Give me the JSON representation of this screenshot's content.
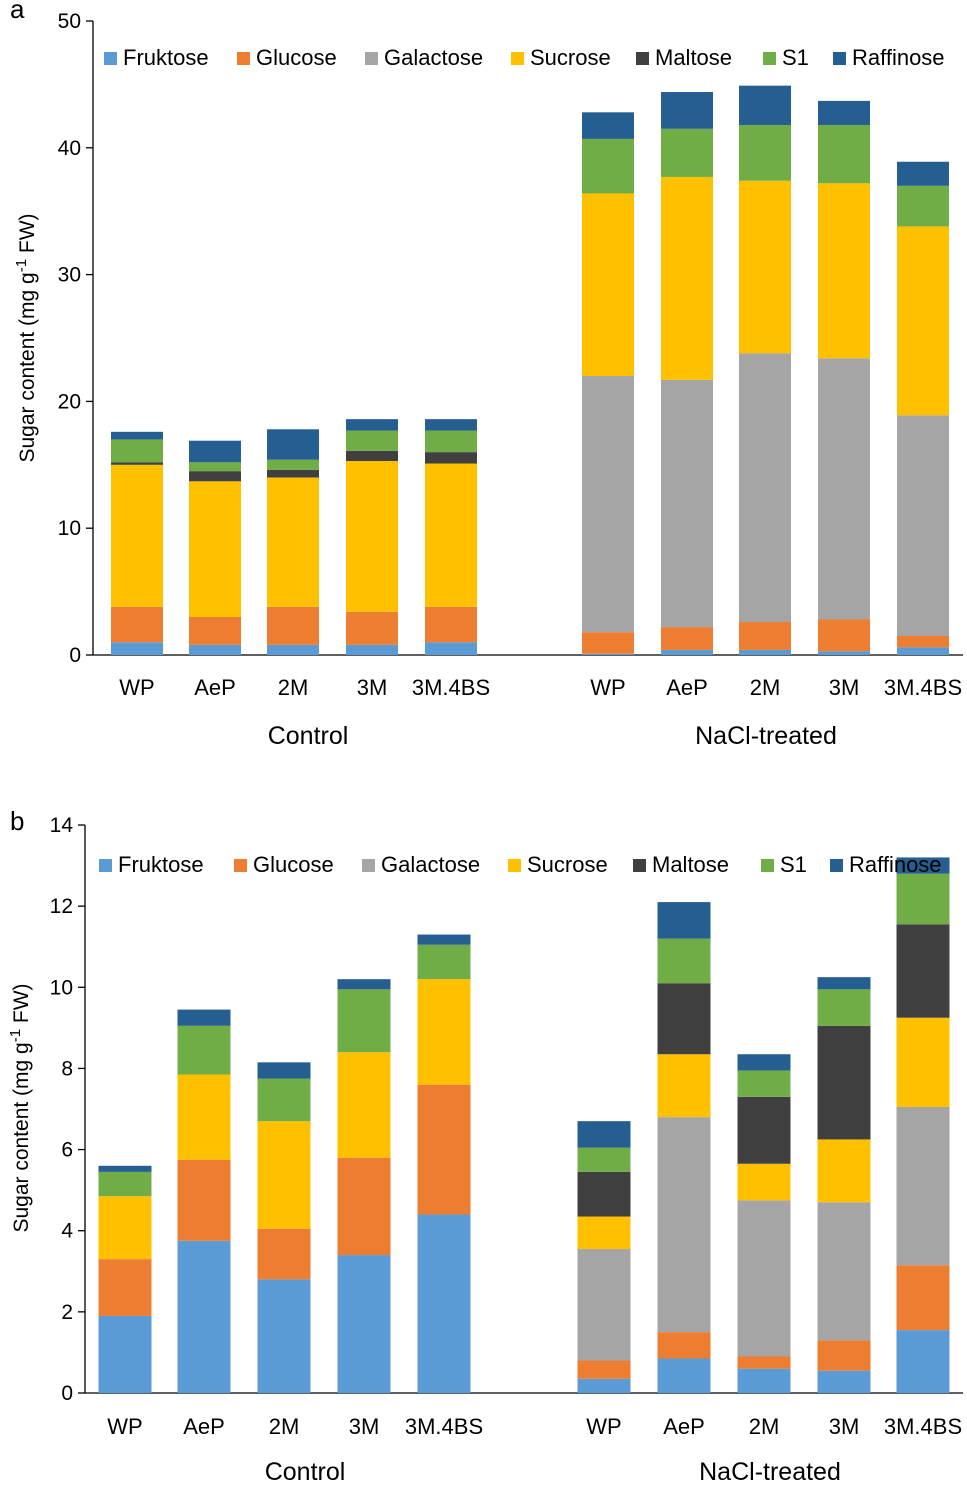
{
  "colors": {
    "Fruktose": "#5b9bd5",
    "Glucose": "#ed7d31",
    "Galactose": "#a5a5a5",
    "Sucrose": "#ffc000",
    "Maltose": "#404040",
    "S1": "#70ad47",
    "Raffinose": "#255e91"
  },
  "chart_data": [
    {
      "type": "bar",
      "stacked": true,
      "panel_label": "a",
      "title": "",
      "ylabel": "Sugar content (mg g-1 FW)",
      "ylabel_main": "Sugar content (mg g",
      "ylabel_sup": "-1",
      "ylabel_end": " FW)",
      "ylim": [
        0,
        50
      ],
      "yticks": [
        "0",
        "10",
        "20",
        "30",
        "40",
        "50"
      ],
      "legend": [
        "Fruktose",
        "Glucose",
        "Galactose",
        "Sucrose",
        "Maltose",
        "S1",
        "Raffinose"
      ],
      "legend_position": "top",
      "groups": [
        {
          "name": "Control",
          "categories": [
            "WP",
            "AeP",
            "2M",
            "3M",
            "3M.4BS"
          ]
        },
        {
          "name": "NaCl-treated",
          "categories": [
            "WP",
            "AeP",
            "2M",
            "3M",
            "3M.4BS"
          ]
        }
      ],
      "series": [
        {
          "name": "Fruktose",
          "values": [
            1.0,
            0.8,
            0.8,
            0.8,
            1.0,
            0.1,
            0.4,
            0.4,
            0.3,
            0.6
          ]
        },
        {
          "name": "Glucose",
          "values": [
            2.8,
            2.2,
            3.0,
            2.6,
            2.8,
            1.7,
            1.8,
            2.2,
            2.5,
            0.9
          ]
        },
        {
          "name": "Galactose",
          "values": [
            0.0,
            0.0,
            0.0,
            0.0,
            0.0,
            20.2,
            19.5,
            21.2,
            20.6,
            17.4
          ]
        },
        {
          "name": "Sucrose",
          "values": [
            11.2,
            10.7,
            10.2,
            11.9,
            11.3,
            14.4,
            16.0,
            13.6,
            13.8,
            14.9
          ]
        },
        {
          "name": "Maltose",
          "values": [
            0.2,
            0.8,
            0.6,
            0.8,
            0.9,
            0.0,
            0.0,
            0.0,
            0.0,
            0.0
          ]
        },
        {
          "name": "S1",
          "values": [
            1.8,
            0.7,
            0.8,
            1.6,
            1.7,
            4.3,
            3.8,
            4.4,
            4.6,
            3.2
          ]
        },
        {
          "name": "Raffinose",
          "values": [
            0.6,
            1.7,
            2.4,
            0.9,
            0.9,
            2.1,
            2.9,
            3.1,
            1.9,
            1.9
          ]
        }
      ]
    },
    {
      "type": "bar",
      "stacked": true,
      "panel_label": "b",
      "title": "",
      "ylabel": "Sugar content (mg g-1 FW)",
      "ylabel_main": "Sugar content (mg g",
      "ylabel_sup": "-1",
      "ylabel_end": " FW)",
      "ylim": [
        0,
        14
      ],
      "yticks": [
        "0",
        "2",
        "4",
        "6",
        "8",
        "10",
        "12",
        "14"
      ],
      "legend": [
        "Fruktose",
        "Glucose",
        "Galactose",
        "Sucrose",
        "Maltose",
        "S1",
        "Raffinose"
      ],
      "legend_position": "top",
      "groups": [
        {
          "name": "Control",
          "categories": [
            "WP",
            "AeP",
            "2M",
            "3M",
            "3M.4BS"
          ]
        },
        {
          "name": "NaCl-treated",
          "categories": [
            "WP",
            "AeP",
            "2M",
            "3M",
            "3M.4BS"
          ]
        }
      ],
      "series": [
        {
          "name": "Fruktose",
          "values": [
            1.9,
            3.75,
            2.8,
            3.4,
            4.4,
            0.35,
            0.85,
            0.6,
            0.55,
            1.55
          ]
        },
        {
          "name": "Glucose",
          "values": [
            1.4,
            2.0,
            1.25,
            2.4,
            3.2,
            0.45,
            0.65,
            0.3,
            0.75,
            1.6
          ]
        },
        {
          "name": "Galactose",
          "values": [
            0.0,
            0.0,
            0.0,
            0.0,
            0.0,
            2.75,
            5.3,
            3.85,
            3.4,
            3.9
          ]
        },
        {
          "name": "Sucrose",
          "values": [
            1.55,
            2.1,
            2.65,
            2.6,
            2.6,
            0.8,
            1.55,
            0.9,
            1.55,
            2.2
          ]
        },
        {
          "name": "Maltose",
          "values": [
            0.0,
            0.0,
            0.0,
            0.0,
            0.0,
            1.1,
            1.75,
            1.65,
            2.8,
            2.3
          ]
        },
        {
          "name": "S1",
          "values": [
            0.6,
            1.2,
            1.05,
            1.55,
            0.85,
            0.6,
            1.1,
            0.65,
            0.9,
            1.25
          ]
        },
        {
          "name": "Raffinose",
          "values": [
            0.15,
            0.4,
            0.4,
            0.25,
            0.25,
            0.65,
            0.9,
            0.4,
            0.3,
            0.4
          ]
        }
      ]
    }
  ]
}
